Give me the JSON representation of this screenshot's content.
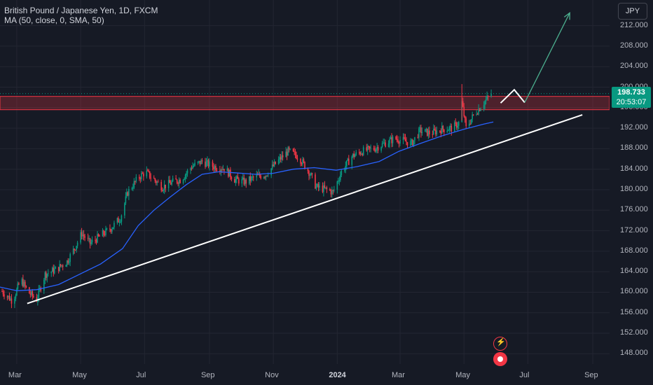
{
  "legend": {
    "symbol": "British Pound / Japanese Yen, 1D, FXCM",
    "indicator": "MA (50, close, 0, SMA, 50)"
  },
  "currency_button": "JPY",
  "last_price": {
    "value": "198.733",
    "countdown": "20:53:07",
    "color": "#089981"
  },
  "colors": {
    "up": "#089981",
    "down": "#f23645",
    "ma": "#2962ff",
    "zone_fill": "rgba(242,54,69,0.25)",
    "zone_border": "#f23645",
    "trendline": "#ffffff",
    "projection": "#ffffff",
    "arrow": "#4caf8f",
    "background": "#161a25",
    "grid": "#232632"
  },
  "chart_data": {
    "type": "candlestick",
    "title": "British Pound / Japanese Yen, 1D, FXCM",
    "y_ticks": [
      "148.000",
      "152.000",
      "156.000",
      "160.000",
      "164.000",
      "168.000",
      "172.000",
      "176.000",
      "180.000",
      "184.000",
      "188.000",
      "192.000",
      "196.000",
      "200.000",
      "204.000",
      "208.000",
      "212.000"
    ],
    "x_ticks": [
      "Mar",
      "May",
      "Jul",
      "Sep",
      "Nov",
      "2024",
      "Mar",
      "May",
      "Jul",
      "Sep"
    ],
    "ylim": [
      146,
      217
    ],
    "xlim": [
      "2023-02-13",
      "2024-09-17"
    ],
    "close_path": [
      [
        "2023-02-15",
        160.2
      ],
      [
        "2023-02-25",
        158.3
      ],
      [
        "2023-03-05",
        162.5
      ],
      [
        "2023-03-12",
        160.0
      ],
      [
        "2023-03-20",
        158.6
      ],
      [
        "2023-03-28",
        163.5
      ],
      [
        "2023-04-08",
        164.5
      ],
      [
        "2023-04-18",
        166.0
      ],
      [
        "2023-04-25",
        168.5
      ],
      [
        "2023-05-02",
        171.5
      ],
      [
        "2023-05-10",
        169.5
      ],
      [
        "2023-05-20",
        171.0
      ],
      [
        "2023-05-30",
        172.5
      ],
      [
        "2023-06-08",
        174.5
      ],
      [
        "2023-06-15",
        179.5
      ],
      [
        "2023-06-25",
        182.3
      ],
      [
        "2023-07-02",
        183.5
      ],
      [
        "2023-07-10",
        182.0
      ],
      [
        "2023-07-18",
        180.5
      ],
      [
        "2023-07-28",
        181.5
      ],
      [
        "2023-08-05",
        182.0
      ],
      [
        "2023-08-15",
        184.5
      ],
      [
        "2023-08-25",
        185.5
      ],
      [
        "2023-09-05",
        184.5
      ],
      [
        "2023-09-15",
        184.2
      ],
      [
        "2023-09-25",
        182.0
      ],
      [
        "2023-10-05",
        181.5
      ],
      [
        "2023-10-15",
        182.5
      ],
      [
        "2023-10-25",
        183.0
      ],
      [
        "2023-11-05",
        185.5
      ],
      [
        "2023-11-15",
        187.5
      ],
      [
        "2023-11-25",
        186.5
      ],
      [
        "2023-12-05",
        183.5
      ],
      [
        "2023-12-12",
        180.5
      ],
      [
        "2023-12-22",
        180.0
      ],
      [
        "2023-12-28",
        179.5
      ],
      [
        "2024-01-05",
        183.5
      ],
      [
        "2024-01-15",
        186.5
      ],
      [
        "2024-01-25",
        187.5
      ],
      [
        "2024-02-05",
        188.0
      ],
      [
        "2024-02-15",
        189.0
      ],
      [
        "2024-02-25",
        190.0
      ],
      [
        "2024-03-05",
        189.5
      ],
      [
        "2024-03-12",
        189.0
      ],
      [
        "2024-03-20",
        191.5
      ],
      [
        "2024-03-30",
        191.0
      ],
      [
        "2024-04-10",
        191.8
      ],
      [
        "2024-04-20",
        192.0
      ],
      [
        "2024-04-26",
        193.0
      ],
      [
        "2024-04-29",
        197.0
      ],
      [
        "2024-05-03",
        192.0
      ],
      [
        "2024-05-10",
        194.5
      ],
      [
        "2024-05-20",
        197.0
      ],
      [
        "2024-05-27",
        198.733
      ]
    ],
    "ma_path": [
      [
        "2023-02-13",
        161.0
      ],
      [
        "2023-03-01",
        160.3
      ],
      [
        "2023-03-20",
        160.5
      ],
      [
        "2023-04-10",
        161.5
      ],
      [
        "2023-04-30",
        163.5
      ],
      [
        "2023-05-20",
        165.5
      ],
      [
        "2023-06-10",
        168.5
      ],
      [
        "2023-06-25",
        173.0
      ],
      [
        "2023-07-10",
        176.0
      ],
      [
        "2023-07-25",
        178.5
      ],
      [
        "2023-08-10",
        181.0
      ],
      [
        "2023-08-25",
        183.0
      ],
      [
        "2023-09-10",
        183.5
      ],
      [
        "2023-09-25",
        183.3
      ],
      [
        "2023-10-15",
        183.0
      ],
      [
        "2023-11-01",
        183.2
      ],
      [
        "2023-11-20",
        184.0
      ],
      [
        "2023-12-10",
        184.3
      ],
      [
        "2023-12-31",
        183.8
      ],
      [
        "2024-01-20",
        184.5
      ],
      [
        "2024-02-10",
        185.5
      ],
      [
        "2024-02-29",
        187.5
      ],
      [
        "2024-03-20",
        189.0
      ],
      [
        "2024-04-10",
        190.5
      ],
      [
        "2024-05-01",
        191.8
      ],
      [
        "2024-05-20",
        192.8
      ],
      [
        "2024-05-29",
        193.2
      ]
    ],
    "ma": {
      "length": 50,
      "source": "close",
      "offset": 0,
      "method": "SMA",
      "label": "MA (50, close, 0, SMA, 50)"
    },
    "resistance_zone": {
      "y_low": 195.6,
      "y_high": 198.2,
      "x_start": "2023-02-13",
      "x_end": "2024-09-17"
    },
    "last_price_line": 198.733,
    "trendline": [
      [
        "2023-03-11",
        157.8
      ],
      [
        "2024-08-22",
        194.6
      ]
    ],
    "projection": [
      [
        "2024-06-05",
        196.9
      ],
      [
        "2024-06-18",
        199.5
      ],
      [
        "2024-06-28",
        197.0
      ],
      [
        "2024-08-10",
        214.5
      ]
    ]
  }
}
